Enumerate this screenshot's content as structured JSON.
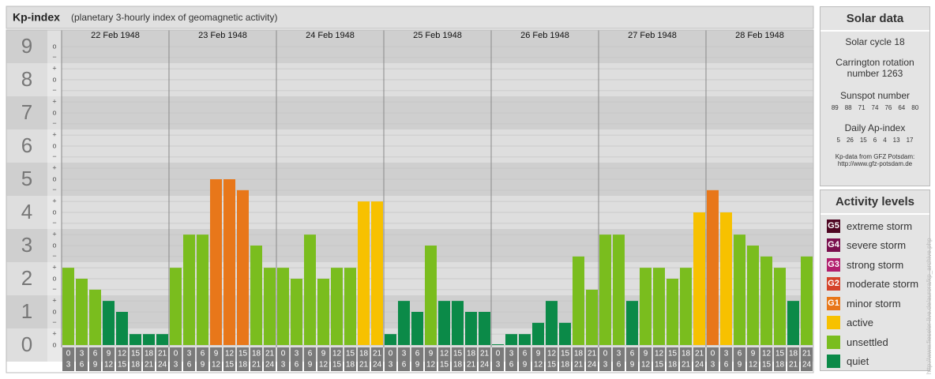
{
  "chart_data": {
    "type": "bar",
    "title": "Kp-index",
    "subtitle": "(planetary 3-hourly index of geomagnetic activity)",
    "categories": [
      "22 Feb 1948",
      "23 Feb 1948",
      "24 Feb 1948",
      "25 Feb 1948",
      "26 Feb 1948",
      "27 Feb 1948",
      "28 Feb 1948"
    ],
    "hour_labels": [
      [
        "0",
        "3"
      ],
      [
        "3",
        "6"
      ],
      [
        "6",
        "9"
      ],
      [
        "9",
        "12"
      ],
      [
        "12",
        "15"
      ],
      [
        "15",
        "18"
      ],
      [
        "18",
        "21"
      ],
      [
        "21",
        "24"
      ]
    ],
    "values": [
      [
        2.33,
        2,
        1.67,
        1.33,
        1,
        0.33,
        0.33,
        0.33
      ],
      [
        2.33,
        3.33,
        3.33,
        5,
        5,
        4.67,
        3,
        2.33
      ],
      [
        2.33,
        2,
        3.33,
        2,
        2.33,
        2.33,
        4.33,
        4.33
      ],
      [
        0.33,
        1.33,
        1,
        3,
        1.33,
        1.33,
        1,
        1
      ],
      [
        0,
        0.33,
        0.33,
        0.67,
        1.33,
        0.67,
        2.67,
        1.67
      ],
      [
        3.33,
        3.33,
        1.33,
        2.33,
        2.33,
        2,
        2.33,
        4
      ],
      [
        4.67,
        4,
        3.33,
        3,
        2.67,
        2.33,
        1.33,
        2.67
      ]
    ],
    "colors": [
      [
        "#7abd1e",
        "#7abd1e",
        "#7abd1e",
        "#0b8a48",
        "#0b8a48",
        "#0b8a48",
        "#0b8a48",
        "#0b8a48"
      ],
      [
        "#7abd1e",
        "#7abd1e",
        "#7abd1e",
        "#e8771a",
        "#e8771a",
        "#e8771a",
        "#7abd1e",
        "#7abd1e"
      ],
      [
        "#7abd1e",
        "#7abd1e",
        "#7abd1e",
        "#7abd1e",
        "#7abd1e",
        "#7abd1e",
        "#f7c100",
        "#f7c100"
      ],
      [
        "#0b8a48",
        "#0b8a48",
        "#0b8a48",
        "#7abd1e",
        "#0b8a48",
        "#0b8a48",
        "#0b8a48",
        "#0b8a48"
      ],
      [
        "#0b8a48",
        "#0b8a48",
        "#0b8a48",
        "#0b8a48",
        "#0b8a48",
        "#0b8a48",
        "#7abd1e",
        "#7abd1e"
      ],
      [
        "#7abd1e",
        "#7abd1e",
        "#0b8a48",
        "#7abd1e",
        "#7abd1e",
        "#7abd1e",
        "#7abd1e",
        "#f7c100"
      ],
      [
        "#e8771a",
        "#f7c100",
        "#7abd1e",
        "#7abd1e",
        "#7abd1e",
        "#7abd1e",
        "#0b8a48",
        "#7abd1e"
      ]
    ],
    "ylim": [
      -0.5,
      9.5
    ],
    "yticks": [
      0,
      1,
      2,
      3,
      4,
      5,
      6,
      7,
      8,
      9
    ],
    "yminorticks": [
      {
        "value": 0,
        "label": "o"
      },
      {
        "value": 0.33,
        "label": "+"
      },
      {
        "value": 0.67,
        "label": "−"
      },
      {
        "value": 1,
        "label": "o"
      },
      {
        "value": 1.33,
        "label": "+"
      },
      {
        "value": 1.67,
        "label": "−"
      },
      {
        "value": 2,
        "label": "o"
      },
      {
        "value": 2.33,
        "label": "+"
      },
      {
        "value": 2.67,
        "label": "−"
      },
      {
        "value": 3,
        "label": "o"
      },
      {
        "value": 3.33,
        "label": "+"
      },
      {
        "value": 3.67,
        "label": "−"
      },
      {
        "value": 4,
        "label": "o"
      },
      {
        "value": 4.33,
        "label": "+"
      },
      {
        "value": 4.67,
        "label": "−"
      },
      {
        "value": 5,
        "label": "o"
      },
      {
        "value": 5.33,
        "label": "+"
      },
      {
        "value": 5.67,
        "label": "−"
      },
      {
        "value": 6,
        "label": "o"
      },
      {
        "value": 6.33,
        "label": "+"
      },
      {
        "value": 6.67,
        "label": "−"
      },
      {
        "value": 7,
        "label": "o"
      },
      {
        "value": 7.33,
        "label": "+"
      },
      {
        "value": 7.67,
        "label": "−"
      },
      {
        "value": 8,
        "label": "o"
      },
      {
        "value": 8.33,
        "label": "+"
      },
      {
        "value": 8.67,
        "label": "−"
      },
      {
        "value": 9,
        "label": "o"
      }
    ],
    "grid": true
  },
  "solar_data": {
    "title": "Solar data",
    "cycle": "Solar cycle 18",
    "carrington": [
      "Carrington rotation",
      "number 1263"
    ],
    "sunspot_title": "Sunspot number",
    "sunspot": [
      89,
      88,
      71,
      74,
      76,
      64,
      80
    ],
    "ap_title": "Daily Ap-index",
    "ap": [
      5,
      26,
      15,
      6,
      4,
      13,
      17
    ],
    "source": "Kp-data from GFZ Potsdam:",
    "url": "http://www.gfz-potsdam.de"
  },
  "activity_levels": {
    "title": "Activity levels",
    "items": [
      {
        "badge": "G5",
        "label": "extreme storm",
        "color": "#4e0622"
      },
      {
        "badge": "G4",
        "label": "severe storm",
        "color": "#7a0f4e"
      },
      {
        "badge": "G3",
        "label": "strong storm",
        "color": "#b21f6e"
      },
      {
        "badge": "G2",
        "label": "moderate storm",
        "color": "#d5432a"
      },
      {
        "badge": "G1",
        "label": "minor storm",
        "color": "#e8771a"
      },
      {
        "badge": null,
        "label": "active",
        "color": "#f7c100"
      },
      {
        "badge": null,
        "label": "unsettled",
        "color": "#7abd1e"
      },
      {
        "badge": null,
        "label": "quiet",
        "color": "#0b8a48"
      }
    ]
  },
  "credit": "http://www.fieseler-live.de/aurora/kp_archive.php"
}
